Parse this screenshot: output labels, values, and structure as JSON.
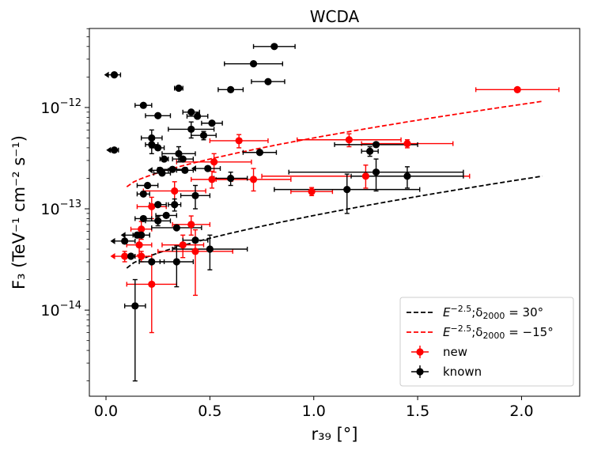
{
  "chart_data": {
    "type": "scatter",
    "title": "WCDA",
    "xlabel": "r₃₉ [°]",
    "ylabel": "F₃ (TeV⁻¹ cm⁻² s⁻¹)",
    "xlim": [
      -0.08,
      2.28
    ],
    "ylim_log10": [
      -14.85,
      -11.22
    ],
    "x_ticks": [
      0.0,
      0.5,
      1.0,
      1.5,
      2.0
    ],
    "x_tick_labels": [
      "0.0",
      "0.5",
      "1.0",
      "1.5",
      "2.0"
    ],
    "y_ticks_log10": [
      -14,
      -13,
      -12
    ],
    "y_tick_base": "10",
    "y_tick_exponents": [
      "−14",
      "−13",
      "−12"
    ],
    "series": [
      {
        "name": "new",
        "color": "#ff0000",
        "points": [
          {
            "x": 1.98,
            "xerr": 0.2,
            "y": 1.5e-12
          },
          {
            "x": 0.64,
            "xerr": 0.14,
            "y": 4.7e-13,
            "ylo": 4e-13,
            "yhi": 5.4e-13
          },
          {
            "x": 1.17,
            "xerr": 0.25,
            "y": 4.8e-13,
            "ylo": 4.1e-13,
            "yhi": 5.5e-13
          },
          {
            "x": 1.45,
            "xerr": 0.22,
            "y": 4.4e-13,
            "ylo": 4e-13,
            "yhi": 4.8e-13
          },
          {
            "x": 0.52,
            "xerr": 0.18,
            "y": 2.9e-13,
            "ylo": 2.3e-13,
            "yhi": 3.5e-13
          },
          {
            "x": 0.51,
            "xerr": 0.1,
            "y": 1.95e-13,
            "ylo": 1.6e-13,
            "yhi": 2.35e-13
          },
          {
            "x": 0.71,
            "xerr": 0.18,
            "y": 1.95e-13,
            "ylo": 1.5e-13,
            "yhi": 2.5e-13
          },
          {
            "x": 1.25,
            "xerr": 0.5,
            "y": 2.1e-13,
            "ylo": 1.6e-13,
            "yhi": 2.7e-13
          },
          {
            "x": 0.99,
            "xerr": 0.1,
            "y": 1.48e-13,
            "ylo": 1.35e-13,
            "yhi": 1.62e-13
          },
          {
            "x": 0.33,
            "xerr": 0.15,
            "y": 1.5e-13,
            "ylo": 1.15e-13,
            "yhi": 1.85e-13
          },
          {
            "x": 0.22,
            "xerr": 0.07,
            "y": 1.05e-13,
            "ylo": 8e-14,
            "yhi": 1.3e-13
          },
          {
            "x": 0.41,
            "xerr": 0.09,
            "y": 7e-14,
            "ylo": 5.5e-14,
            "yhi": 8.5e-14
          },
          {
            "x": 0.17,
            "xerr": 0.05,
            "y": 6.3e-14,
            "ylo": 5e-14,
            "yhi": 7.5e-14
          },
          {
            "x": 0.16,
            "xerr": 0.06,
            "y": 4.4e-14,
            "ylo": 3.5e-14,
            "yhi": 5.3e-14
          },
          {
            "x": 0.37,
            "xerr": 0.1,
            "y": 4.4e-14,
            "ylo": 3.3e-14,
            "yhi": 5.5e-14
          },
          {
            "x": 0.43,
            "xerr": 0.18,
            "y": 3.8e-14,
            "ylo": 1.4e-14,
            "yhi": 6.2e-14
          },
          {
            "x": 0.17,
            "xerr": 0.05,
            "y": 3.4e-14,
            "ylo": 3e-14,
            "yhi": 3.8e-14
          },
          {
            "x": 0.09,
            "xerr": 0.05,
            "y": 3.4e-14,
            "ylo": 3e-14,
            "yhi": 3.8e-14,
            "upper": true
          },
          {
            "x": 0.22,
            "xerr": 0.12,
            "y": 1.8e-14,
            "ylo": 6e-15,
            "yhi": 3e-14
          }
        ]
      },
      {
        "name": "known",
        "color": "#000000",
        "points": [
          {
            "x": 0.81,
            "xerr": 0.1,
            "y": 4e-12
          },
          {
            "x": 0.71,
            "xerr": 0.14,
            "y": 2.7e-12
          },
          {
            "x": 0.78,
            "xerr": 0.08,
            "y": 1.8e-12
          },
          {
            "x": 0.6,
            "xerr": 0.06,
            "y": 1.5e-12
          },
          {
            "x": 0.04,
            "xerr": 0.03,
            "y": 2.1e-12,
            "upper": true
          },
          {
            "x": 0.35,
            "xerr": 0.02,
            "y": 1.55e-12
          },
          {
            "x": 0.18,
            "xerr": 0.04,
            "y": 1.05e-12
          },
          {
            "x": 0.25,
            "xerr": 0.06,
            "y": 8.3e-13
          },
          {
            "x": 0.41,
            "xerr": 0.04,
            "y": 9e-13
          },
          {
            "x": 0.44,
            "xerr": 0.05,
            "y": 8.2e-13
          },
          {
            "x": 0.51,
            "xerr": 0.05,
            "y": 7e-13
          },
          {
            "x": 0.41,
            "xerr": 0.11,
            "y": 6.1e-13,
            "ylo": 5e-13,
            "yhi": 7.2e-13
          },
          {
            "x": 0.47,
            "xerr": 0.06,
            "y": 5.3e-13,
            "ylo": 4.8e-13,
            "yhi": 5.8e-13
          },
          {
            "x": 0.22,
            "xerr": 0.05,
            "y": 5e-13,
            "ylo": 4e-13,
            "yhi": 6e-13
          },
          {
            "x": 0.22,
            "xerr": 0.03,
            "y": 4.3e-13,
            "ylo": 3.5e-13,
            "yhi": 5e-13
          },
          {
            "x": 0.25,
            "xerr": 0.03,
            "y": 4e-13
          },
          {
            "x": 0.04,
            "xerr": 0.02,
            "y": 3.8e-13,
            "upper": true
          },
          {
            "x": 0.74,
            "xerr": 0.08,
            "y": 3.6e-13
          },
          {
            "x": 0.35,
            "xerr": 0.08,
            "y": 3.5e-13,
            "ylo": 2.9e-13,
            "yhi": 4.1e-13
          },
          {
            "x": 0.28,
            "xerr": 0.02,
            "y": 3.1e-13
          },
          {
            "x": 0.37,
            "xerr": 0.05,
            "y": 3.1e-13
          },
          {
            "x": 1.3,
            "xerr": 0.2,
            "y": 4.3e-13
          },
          {
            "x": 1.27,
            "xerr": 0.04,
            "y": 3.7e-13,
            "ylo": 3.3e-13,
            "yhi": 4.1e-13
          },
          {
            "x": 0.49,
            "xerr": 0.06,
            "y": 2.5e-13,
            "upper": true
          },
          {
            "x": 0.26,
            "xerr": 0.04,
            "y": 2.4e-13,
            "upper": true
          },
          {
            "x": 0.27,
            "xerr": 0.04,
            "y": 2.25e-13
          },
          {
            "x": 0.32,
            "xerr": 0.07,
            "y": 2.45e-13
          },
          {
            "x": 0.38,
            "xerr": 0.04,
            "y": 2.4e-13
          },
          {
            "x": 0.6,
            "xerr": 0.08,
            "y": 2e-13,
            "ylo": 1.7e-13,
            "yhi": 2.3e-13
          },
          {
            "x": 1.3,
            "xerr": 0.42,
            "y": 2.3e-13,
            "ylo": 1.5e-13,
            "yhi": 3.1e-13
          },
          {
            "x": 1.45,
            "xerr": 0.27,
            "y": 2.1e-13,
            "ylo": 1.6e-13,
            "yhi": 2.6e-13
          },
          {
            "x": 0.2,
            "xerr": 0.05,
            "y": 1.7e-13
          },
          {
            "x": 1.16,
            "xerr": 0.35,
            "y": 1.55e-13,
            "ylo": 9e-14,
            "yhi": 2.2e-13
          },
          {
            "x": 0.18,
            "xerr": 0.03,
            "y": 1.4e-13
          },
          {
            "x": 0.43,
            "xerr": 0.07,
            "y": 1.35e-13,
            "ylo": 1e-13,
            "yhi": 1.7e-13
          },
          {
            "x": 0.25,
            "xerr": 0.04,
            "y": 1.1e-13
          },
          {
            "x": 0.33,
            "xerr": 0.03,
            "y": 1.1e-13,
            "ylo": 9.5e-14,
            "yhi": 1.25e-13
          },
          {
            "x": 0.29,
            "xerr": 0.05,
            "y": 8.6e-14
          },
          {
            "x": 0.25,
            "xerr": 0.06,
            "y": 7.6e-14,
            "ylo": 6.8e-14,
            "yhi": 8.4e-14
          },
          {
            "x": 0.18,
            "xerr": 0.04,
            "y": 8e-14
          },
          {
            "x": 0.34,
            "xerr": 0.12,
            "y": 6.5e-14
          },
          {
            "x": 0.15,
            "xerr": 0.06,
            "y": 5.5e-14,
            "upper": true
          },
          {
            "x": 0.17,
            "xerr": 0.04,
            "y": 5.5e-14
          },
          {
            "x": 0.09,
            "xerr": 0.05,
            "y": 4.8e-14,
            "upper": true
          },
          {
            "x": 0.43,
            "xerr": 0.06,
            "y": 4.9e-14
          },
          {
            "x": 0.5,
            "xerr": 0.18,
            "y": 4e-14,
            "ylo": 2.5e-14,
            "yhi": 5.5e-14
          },
          {
            "x": 0.12,
            "xerr": 0.02,
            "y": 3.4e-14
          },
          {
            "x": 0.22,
            "xerr": 0.06,
            "y": 3e-14
          },
          {
            "x": 0.34,
            "xerr": 0.08,
            "y": 3e-14,
            "ylo": 1.7e-14,
            "yhi": 4.3e-14
          },
          {
            "x": 0.14,
            "xerr": 0.05,
            "y": 1.1e-14,
            "ylo": 2e-15,
            "yhi": 2e-14
          }
        ]
      }
    ],
    "curves": [
      {
        "name": "black-dashed",
        "color": "#000000",
        "x0": 0.1,
        "x1": 2.1,
        "y0": 2.6e-14,
        "y1": 2.1e-13,
        "exp": 0.7
      },
      {
        "name": "red-dashed",
        "color": "#ff0000",
        "x0": 0.1,
        "x1": 2.1,
        "y0": 1.65e-13,
        "y1": 1.15e-12,
        "exp": 0.7
      }
    ],
    "legend": {
      "position": "lower-right",
      "entries": [
        {
          "label": "E^{−2.5};δ2000 = 30°",
          "color": "#000000",
          "kind": "dashed",
          "prefix": "E",
          "sup": "−2.5",
          "sep": ";δ",
          "sub": "2000",
          "rest": " = 30°"
        },
        {
          "label": "E^{−2.5};δ2000 = −15°",
          "color": "#ff0000",
          "kind": "dashed",
          "prefix": "E",
          "sup": "−2.5",
          "sep": ";δ",
          "sub": "2000",
          "rest": " = −15°"
        },
        {
          "label": "new",
          "color": "#ff0000",
          "kind": "marker"
        },
        {
          "label": "known",
          "color": "#000000",
          "kind": "marker"
        }
      ]
    }
  }
}
